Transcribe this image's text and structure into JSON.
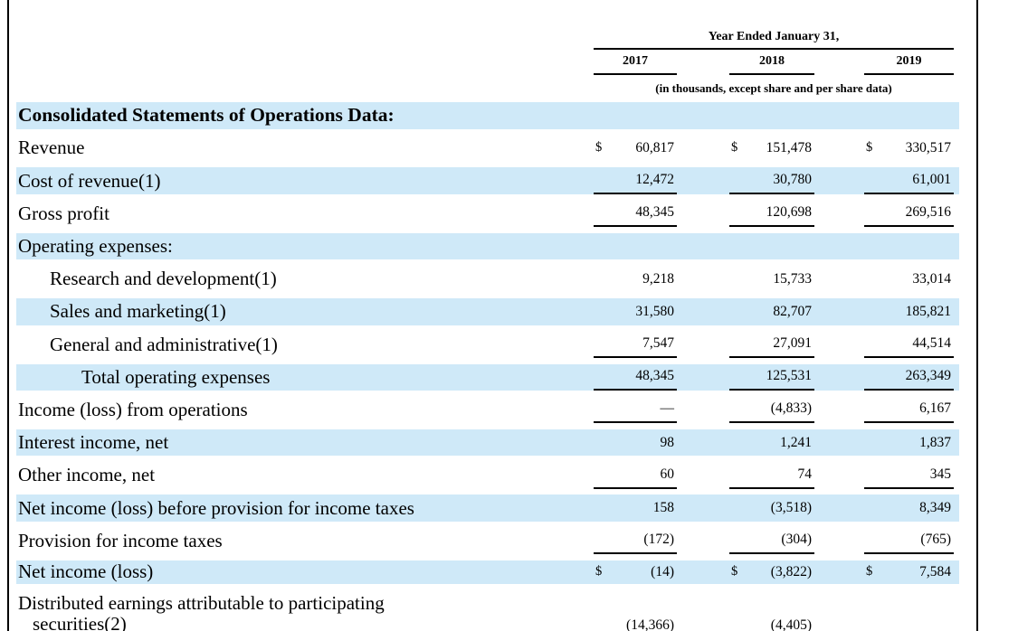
{
  "page": {
    "background_color": "#ffffff",
    "border_color": "#000000",
    "highlight_color": "#cfe9f8"
  },
  "table": {
    "currency_symbol": "$",
    "header": {
      "title": "Year Ended January 31,",
      "years": [
        "2017",
        "2018",
        "2019"
      ],
      "note": "(in thousands, except share and per share data)"
    },
    "rows": [
      {
        "label": "Consolidated Statements of Operations Data:",
        "heading": true,
        "highlight": true,
        "indent": 0,
        "dollar": false,
        "rule": false,
        "values": null
      },
      {
        "label": "Revenue",
        "indent": 0,
        "dollar": true,
        "rule": false,
        "values": [
          "60,817",
          "151,478",
          "330,517"
        ]
      },
      {
        "label": "Cost of revenue(1)",
        "highlight": true,
        "indent": 0,
        "dollar": false,
        "rule": true,
        "values": [
          "12,472",
          "30,780",
          "61,001"
        ]
      },
      {
        "label": "Gross profit",
        "indent": 0,
        "dollar": false,
        "rule": true,
        "values": [
          "48,345",
          "120,698",
          "269,516"
        ]
      },
      {
        "label": "Operating expenses:",
        "highlight": true,
        "indent": 0,
        "dollar": false,
        "rule": false,
        "values": null
      },
      {
        "label": "Research and development(1)",
        "indent": 1,
        "dollar": false,
        "rule": false,
        "values": [
          "9,218",
          "15,733",
          "33,014"
        ]
      },
      {
        "label": "Sales and marketing(1)",
        "highlight": true,
        "indent": 1,
        "dollar": false,
        "rule": false,
        "values": [
          "31,580",
          "82,707",
          "185,821"
        ]
      },
      {
        "label": "General and administrative(1)",
        "indent": 1,
        "dollar": false,
        "rule": true,
        "values": [
          "7,547",
          "27,091",
          "44,514"
        ]
      },
      {
        "label": "Total operating expenses",
        "highlight": true,
        "indent": 2,
        "dollar": false,
        "rule": true,
        "values": [
          "48,345",
          "125,531",
          "263,349"
        ]
      },
      {
        "label": "Income (loss) from operations",
        "indent": 0,
        "dollar": false,
        "rule": true,
        "values": [
          "—",
          "(4,833)",
          "6,167"
        ]
      },
      {
        "label": "Interest income, net",
        "highlight": true,
        "indent": 0,
        "dollar": false,
        "rule": false,
        "values": [
          "98",
          "1,241",
          "1,837"
        ]
      },
      {
        "label": "Other income, net",
        "indent": 0,
        "dollar": false,
        "rule": true,
        "values": [
          "60",
          "74",
          "345"
        ]
      },
      {
        "label": "Net income (loss) before provision for income taxes",
        "highlight": true,
        "indent": 0,
        "dollar": false,
        "rule": false,
        "values": [
          "158",
          "(3,518)",
          "8,349"
        ]
      },
      {
        "label": "Provision for income taxes",
        "indent": 0,
        "dollar": false,
        "rule": true,
        "values": [
          "(172)",
          "(304)",
          "(765)"
        ]
      },
      {
        "label": "Net income (loss)",
        "highlight": true,
        "indent": 0,
        "dollar": true,
        "rule": false,
        "values": [
          "(14)",
          "(3,822)",
          "7,584"
        ]
      },
      {
        "label": "Distributed earnings attributable to participating",
        "label2": "securities(2)",
        "partial": true,
        "indent": 0,
        "dollar": false,
        "rule": false,
        "values": [
          "(14,366)",
          "(4,405)",
          ""
        ]
      }
    ]
  }
}
